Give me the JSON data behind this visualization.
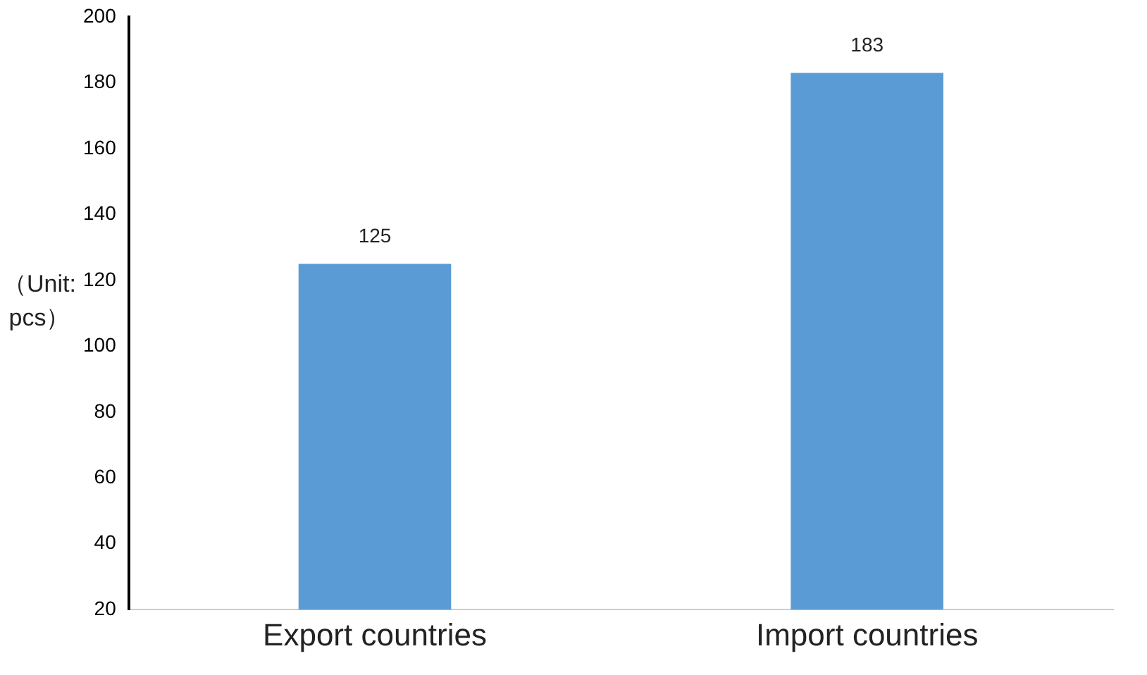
{
  "chart_data": {
    "type": "bar",
    "ylabel": "（Unit: pcs）",
    "categories": [
      "Export countries",
      "Import countries"
    ],
    "values": [
      125,
      183
    ],
    "color": "#5b9bd5",
    "ylim": [
      20,
      200
    ],
    "yticks": [
      20,
      40,
      60,
      80,
      100,
      120,
      140,
      160,
      180,
      200
    ],
    "data_labels": true,
    "grid": false,
    "legend": false
  }
}
